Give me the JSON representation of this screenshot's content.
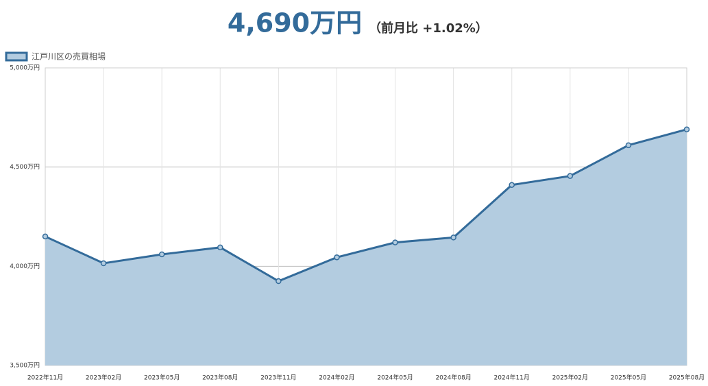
{
  "chart_data": {
    "type": "line",
    "title": "4,690万円",
    "subtitle": "（前月比 +1.02%）",
    "categories": [
      "2022年11月",
      "2023年02月",
      "2023年05月",
      "2023年08月",
      "2023年11月",
      "2024年02月",
      "2024年05月",
      "2024年08月",
      "2024年11月",
      "2025年02月",
      "2025年05月",
      "2025年08月"
    ],
    "series": [
      {
        "name": "江戸川区の売買相場",
        "color": "#336b9a",
        "fill": "#b3cce0",
        "values": [
          4150,
          4015,
          4060,
          4095,
          3925,
          4045,
          4120,
          4145,
          4410,
          4455,
          4610,
          4690
        ]
      }
    ],
    "ylim": [
      3500,
      5000
    ],
    "yticks": [
      {
        "value": 3500,
        "label": "3,500万円"
      },
      {
        "value": 4000,
        "label": "4,000万円"
      },
      {
        "value": 4500,
        "label": "4,500万円"
      },
      {
        "value": 5000,
        "label": "5,000万円"
      }
    ],
    "grid": true
  }
}
